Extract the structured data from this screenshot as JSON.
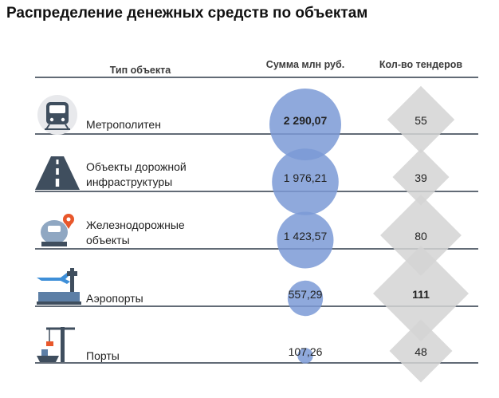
{
  "title": "Распределение денежных средств по объектам",
  "chart_data": {
    "type": "table",
    "columns": [
      "Тип объекта",
      "Сумма млн руб.",
      "Кол-во тендеров"
    ],
    "rows": [
      {
        "category": "Метрополитен",
        "category_lines": [
          "Метрополитен"
        ],
        "icon": "metro-train-icon",
        "amount": 2290.07,
        "amount_label": "2 290,07",
        "tenders": 55,
        "tenders_label": "55"
      },
      {
        "category": "Объекты дорожной инфраструктуры",
        "category_lines": [
          "Объекты дорожной",
          "инфраструктуры"
        ],
        "icon": "road-icon",
        "amount": 1976.21,
        "amount_label": "1 976,21",
        "tenders": 39,
        "tenders_label": "39"
      },
      {
        "category": "Железнодорожные объекты",
        "category_lines": [
          "Железнодорожные",
          "объекты"
        ],
        "icon": "railway-train-icon",
        "amount": 1423.57,
        "amount_label": "1 423,57",
        "tenders": 80,
        "tenders_label": "80"
      },
      {
        "category": "Аэропорты",
        "category_lines": [
          "Аэропорты"
        ],
        "icon": "airport-icon",
        "amount": 557.29,
        "amount_label": "557,29",
        "tenders": 111,
        "tenders_label": "111"
      },
      {
        "category": "Порты",
        "category_lines": [
          "Порты"
        ],
        "icon": "port-crane-icon",
        "amount": 107.26,
        "amount_label": "107,26",
        "tenders": 48,
        "tenders_label": "48"
      }
    ],
    "encodings": {
      "amount": "circle-area",
      "tenders": "diamond-area"
    },
    "colors": {
      "circle": "#7b9ad6",
      "diamond": "#d3d3d3",
      "icon_dark": "#3f4e5e",
      "icon_light": "#e8e9ec",
      "accent": "#e8572b"
    }
  }
}
